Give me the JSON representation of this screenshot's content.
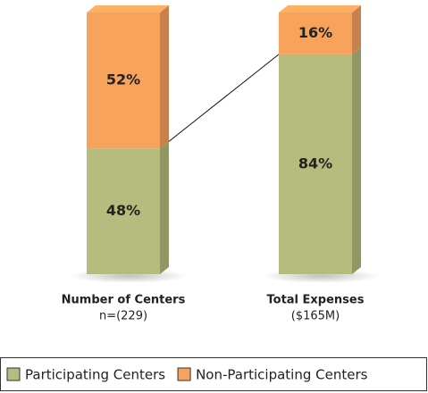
{
  "chart_data": {
    "type": "stacked_bar",
    "categories": [
      "Number of Centers",
      "Total Expenses"
    ],
    "category_sublabels": [
      "n=(229)",
      "($165M)"
    ],
    "series": [
      {
        "name": "Participating Centers",
        "color": "#b5bc7e",
        "values": [
          48,
          84
        ],
        "value_labels": [
          "48%",
          "84%"
        ]
      },
      {
        "name": "Non-Participating Centers",
        "color": "#f7a35c",
        "values": [
          52,
          16
        ],
        "value_labels": [
          "52%",
          "16%"
        ]
      }
    ],
    "legend": "bottom"
  }
}
